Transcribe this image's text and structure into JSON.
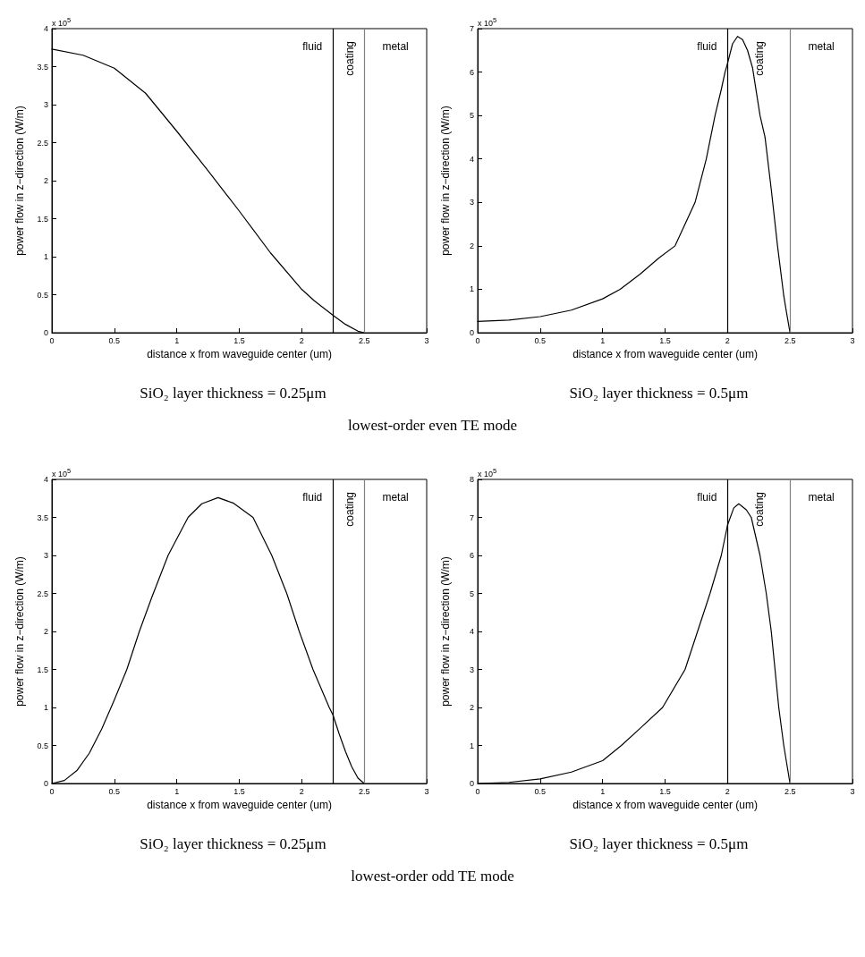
{
  "chart_data": [
    {
      "type": "line",
      "title": "lowest-order even TE mode",
      "subtitle": "SiO₂ layer thickness = 0.25μm",
      "xlabel": "distance x from waveguide center (um)",
      "ylabel": "power flow in z−direction (W/m)",
      "xlim": [
        0,
        3
      ],
      "xticks": [
        0,
        0.5,
        1,
        1.5,
        2,
        2.5,
        3
      ],
      "ylim": [
        0,
        4
      ],
      "yticks": [
        0,
        0.5,
        1,
        1.5,
        2,
        2.5,
        3,
        3.5,
        4
      ],
      "grid": false,
      "marker": "none",
      "line_style": "solid",
      "series": [
        {
          "color": "#000000",
          "x": [
            0,
            0.25,
            0.5,
            0.75,
            1,
            1.25,
            1.5,
            1.75,
            2,
            2.1,
            2.25,
            2.35,
            2.45,
            2.5
          ],
          "values": [
            3.73,
            3.65,
            3.48,
            3.15,
            2.65,
            2.13,
            1.6,
            1.05,
            0.57,
            0.42,
            0.23,
            0.11,
            0.02,
            0
          ]
        }
      ],
      "ref_lines": [
        {
          "axis": "x",
          "value": 2.25,
          "color": "#000000"
        },
        {
          "axis": "x",
          "value": 2.5,
          "color": "#808080"
        }
      ],
      "annotations": [
        "x 10$^{5}$",
        "fluid",
        "coating",
        "metal"
      ]
    },
    {
      "type": "line",
      "subtitle": "SiO₂ layer thickness = 0.5μm",
      "xlabel": "distance x from waveguide center (um)",
      "ylabel": "power flow in z−direction (W/m)",
      "xlim": [
        0,
        3
      ],
      "xticks": [
        0,
        0.5,
        1,
        1.5,
        2,
        2.5,
        3
      ],
      "ylim": [
        0,
        7
      ],
      "yticks": [
        0,
        1,
        2,
        3,
        4,
        5,
        6,
        7
      ],
      "grid": false,
      "marker": "none",
      "line_style": "solid",
      "series": [
        {
          "color": "#000000",
          "x": [
            0,
            0.25,
            0.5,
            0.75,
            1,
            1.14,
            1.3,
            1.45,
            1.58,
            1.74,
            1.83,
            1.9,
            1.95,
            1.98,
            2,
            2.04,
            2.08,
            2.12,
            2.16,
            2.2,
            2.26,
            2.3,
            2.35,
            2.4,
            2.45,
            2.47,
            2.5
          ],
          "values": [
            0.26,
            0.29,
            0.37,
            0.52,
            0.78,
            1,
            1.35,
            1.72,
            2,
            3,
            4,
            5,
            5.6,
            6,
            6.2,
            6.65,
            6.82,
            6.75,
            6.5,
            6.1,
            5,
            4.5,
            3.3,
            2,
            0.85,
            0.5,
            0
          ]
        }
      ],
      "ref_lines": [
        {
          "axis": "x",
          "value": 2,
          "color": "#000000"
        },
        {
          "axis": "x",
          "value": 2.5,
          "color": "#808080"
        }
      ],
      "annotations": [
        "x 10$^{5}$",
        "fluid",
        "coating",
        "metal"
      ]
    },
    {
      "type": "line",
      "title": "lowest-order odd TE mode",
      "subtitle": "SiO₂ layer thickness = 0.25μm",
      "xlabel": "distance x from waveguide center (um)",
      "ylabel": "power flow in z−direction (W/m)",
      "xlim": [
        0,
        3
      ],
      "xticks": [
        0,
        0.5,
        1,
        1.5,
        2,
        2.5,
        3
      ],
      "ylim": [
        0,
        4
      ],
      "yticks": [
        0,
        0.5,
        1,
        1.5,
        2,
        2.5,
        3,
        3.5,
        4
      ],
      "grid": false,
      "marker": "none",
      "line_style": "solid",
      "series": [
        {
          "color": "#000000",
          "x": [
            0,
            0.1,
            0.2,
            0.3,
            0.4,
            0.5,
            0.6,
            0.7,
            0.8,
            0.93,
            1.09,
            1.2,
            1.33,
            1.45,
            1.61,
            1.76,
            1.88,
            1.98,
            2.09,
            2.22,
            2.25,
            2.3,
            2.35,
            2.4,
            2.45,
            2.5
          ],
          "values": [
            0,
            0.04,
            0.17,
            0.4,
            0.72,
            1.1,
            1.5,
            2,
            2.45,
            3,
            3.5,
            3.68,
            3.76,
            3.69,
            3.5,
            3,
            2.5,
            2,
            1.5,
            1,
            0.9,
            0.65,
            0.42,
            0.22,
            0.07,
            0
          ]
        }
      ],
      "ref_lines": [
        {
          "axis": "x",
          "value": 2.25,
          "color": "#000000"
        },
        {
          "axis": "x",
          "value": 2.5,
          "color": "#808080"
        }
      ],
      "annotations": [
        "x 10$^{5}$",
        "fluid",
        "coating",
        "metal"
      ]
    },
    {
      "type": "line",
      "subtitle": "SiO₂ layer thickness = 0.5μm",
      "xlabel": "distance x from waveguide center (um)",
      "ylabel": "power flow in z−direction (W/m)",
      "xlim": [
        0,
        3
      ],
      "xticks": [
        0,
        0.5,
        1,
        1.5,
        2,
        2.5,
        3
      ],
      "ylim": [
        0,
        8
      ],
      "yticks": [
        0,
        1,
        2,
        3,
        4,
        5,
        6,
        7,
        8
      ],
      "grid": false,
      "marker": "none",
      "line_style": "solid",
      "series": [
        {
          "color": "#000000",
          "x": [
            0,
            0.25,
            0.5,
            0.75,
            1,
            1.15,
            1.3,
            1.48,
            1.66,
            1.76,
            1.86,
            1.95,
            2,
            2.05,
            2.09,
            2.15,
            2.19,
            2.26,
            2.31,
            2.35,
            2.38,
            2.41,
            2.45,
            2.48,
            2.5
          ],
          "values": [
            0,
            0.03,
            0.12,
            0.3,
            0.6,
            1,
            1.45,
            2,
            3,
            4,
            5,
            6,
            6.8,
            7.25,
            7.36,
            7.2,
            7,
            6,
            5,
            4,
            3,
            2,
            1,
            0.4,
            0
          ]
        }
      ],
      "ref_lines": [
        {
          "axis": "x",
          "value": 2,
          "color": "#000000"
        },
        {
          "axis": "x",
          "value": 2.5,
          "color": "#808080"
        }
      ],
      "annotations": [
        "x 10$^{5}$",
        "fluid",
        "coating",
        "metal"
      ]
    }
  ]
}
